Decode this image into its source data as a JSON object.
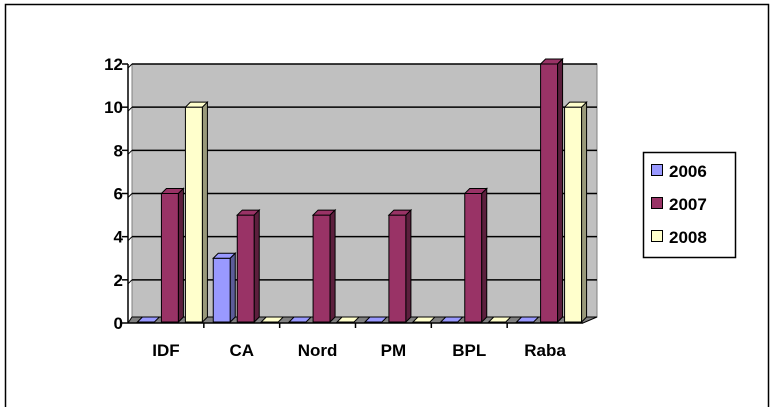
{
  "chart_data": {
    "type": "bar",
    "categories": [
      "IDF",
      "CA",
      "Nord",
      "PM",
      "BPL",
      "Raba"
    ],
    "series": [
      {
        "name": "2006",
        "values": [
          0,
          3,
          0,
          0,
          0,
          0
        ],
        "color": "#9999ff"
      },
      {
        "name": "2007",
        "values": [
          6,
          5,
          5,
          5,
          6,
          12
        ],
        "color": "#993366"
      },
      {
        "name": "2008",
        "values": [
          10,
          0,
          0,
          0,
          0,
          10
        ],
        "color": "#ffffcc"
      }
    ],
    "y_ticks": [
      "0",
      "2",
      "4",
      "6",
      "8",
      "10",
      "12"
    ],
    "ylim": [
      0,
      12
    ],
    "grid": true,
    "legend_position": "right",
    "colors": {
      "plot_background": "#c0c0c0",
      "border": "#000000"
    }
  }
}
